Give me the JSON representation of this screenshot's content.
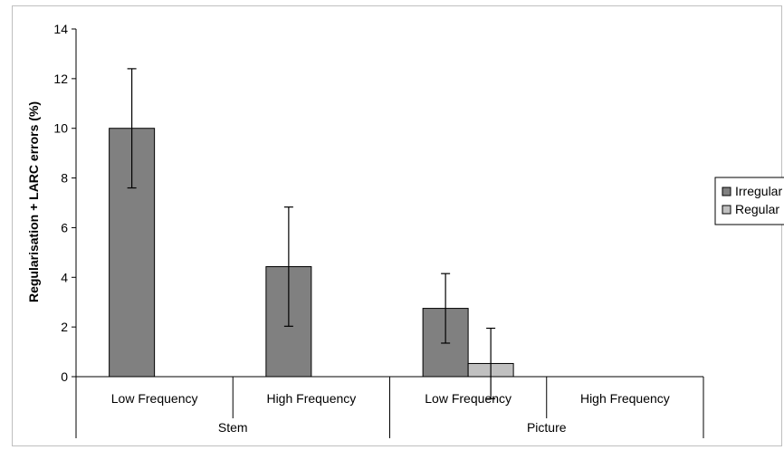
{
  "chart_data": {
    "type": "bar",
    "title": "",
    "xlabel": "",
    "ylabel": "Regularisation + LARC errors (%)",
    "ylim": [
      0,
      14
    ],
    "yticks": [
      0,
      2,
      4,
      6,
      8,
      10,
      12,
      14
    ],
    "grid": false,
    "legend_position": "right",
    "groups": [
      {
        "label": "Stem",
        "categories": [
          "Low Frequency",
          "High Frequency"
        ]
      },
      {
        "label": "Picture",
        "categories": [
          "Low Frequency",
          "High Frequency"
        ]
      }
    ],
    "categories": [
      "Low Frequency",
      "High Frequency",
      "Low Frequency",
      "High Frequency"
    ],
    "series": [
      {
        "name": "Irregular",
        "color": "#808080",
        "values": [
          10.0,
          4.43,
          2.75,
          0
        ],
        "error": [
          2.4,
          2.4,
          1.4,
          0
        ]
      },
      {
        "name": "Regular",
        "color": "#c0c0c0",
        "values": [
          0,
          0,
          0.53,
          0
        ],
        "error": [
          0,
          0,
          1.42,
          0
        ]
      }
    ]
  }
}
